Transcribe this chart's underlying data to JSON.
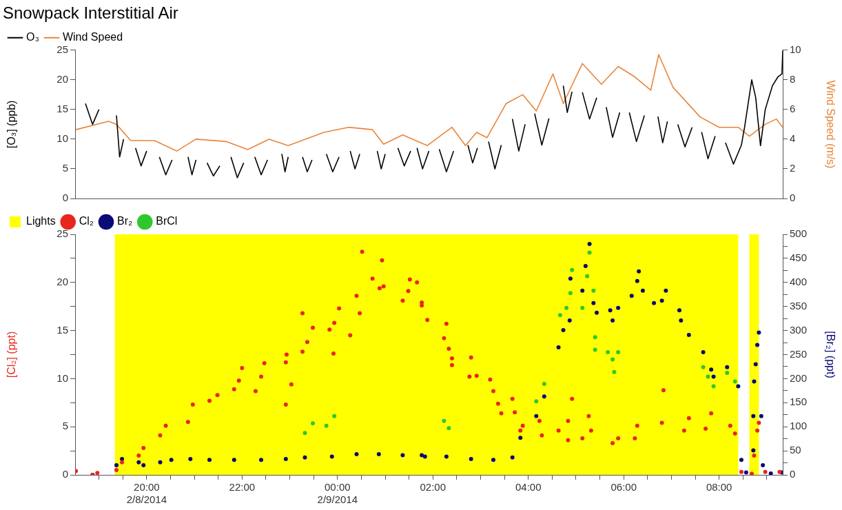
{
  "chart_data": [
    {
      "type": "line",
      "title": "Snowpack Interstitial Air",
      "ylabel": "[O₃] (ppb)",
      "y2label": "Wind Speed (m/s)",
      "legend": "top left",
      "tick_labels": "y",
      "marker": "none",
      "line_style": "solid",
      "xlim": [
        "2014-02-08T18:30",
        "2014-02-09T09:20"
      ],
      "ylim": [
        0,
        25
      ],
      "yticks": [
        0,
        5,
        10,
        15,
        20,
        25
      ],
      "y2lim": [
        0,
        10
      ],
      "y2ticks": [
        0,
        2,
        4,
        6,
        8,
        10
      ],
      "series": [
        {
          "name": "O₃",
          "color": "#000000",
          "x": [
            "2014-02-08T18:43",
            "2014-02-08T18:52",
            "2014-02-08T19:00",
            "2014-02-08T19:03",
            "2014-02-08T19:22",
            "2014-02-08T19:26",
            "2014-02-08T19:31",
            "2014-02-08T19:34",
            "2014-02-08T19:46",
            "2014-02-08T19:53",
            "2014-02-08T20:00",
            "2014-02-08T20:03",
            "2014-02-08T20:16",
            "2014-02-08T20:24",
            "2014-02-08T20:32",
            "2014-02-08T20:35",
            "2014-02-08T20:52",
            "2014-02-08T20:57",
            "2014-02-08T21:02",
            "2014-02-08T21:05",
            "2014-02-08T21:16",
            "2014-02-08T21:24",
            "2014-02-08T21:32",
            "2014-02-08T21:35",
            "2014-02-08T21:46",
            "2014-02-08T21:54",
            "2014-02-08T22:02",
            "2014-02-08T22:05",
            "2014-02-08T22:16",
            "2014-02-08T22:24",
            "2014-02-08T22:32",
            "2014-02-08T22:35",
            "2014-02-08T22:50",
            "2014-02-08T22:54",
            "2014-02-08T22:58",
            "2014-02-08T23:01",
            "2014-02-08T23:16",
            "2014-02-08T23:22",
            "2014-02-08T23:28",
            "2014-02-08T23:31",
            "2014-02-08T23:46",
            "2014-02-08T23:54",
            "2014-02-09T00:02",
            "2014-02-09T00:05",
            "2014-02-09T00:16",
            "2014-02-09T00:22",
            "2014-02-09T00:28",
            "2014-02-09T00:31",
            "2014-02-09T00:50",
            "2014-02-09T00:55",
            "2014-02-09T01:00",
            "2014-02-09T01:03",
            "2014-02-09T01:16",
            "2014-02-09T01:24",
            "2014-02-09T01:32",
            "2014-02-09T01:35",
            "2014-02-09T01:40",
            "2014-02-09T01:47",
            "2014-02-09T01:55",
            "2014-02-09T01:58",
            "2014-02-09T02:08",
            "2014-02-09T02:17",
            "2014-02-09T02:26",
            "2014-02-09T02:29",
            "2014-02-09T02:44",
            "2014-02-09T02:50",
            "2014-02-09T02:56",
            "2014-02-09T02:59",
            "2014-02-09T03:10",
            "2014-02-09T03:18",
            "2014-02-09T03:26",
            "2014-02-09T03:29",
            "2014-02-09T03:40",
            "2014-02-09T03:48",
            "2014-02-09T03:56",
            "2014-02-09T03:59",
            "2014-02-09T04:08",
            "2014-02-09T04:17",
            "2014-02-09T04:26",
            "2014-02-09T04:29",
            "2014-02-09T04:44",
            "2014-02-09T04:49",
            "2014-02-09T04:55",
            "2014-02-09T04:58",
            "2014-02-09T05:08",
            "2014-02-09T05:17",
            "2014-02-09T05:26",
            "2014-02-09T05:29",
            "2014-02-09T05:38",
            "2014-02-09T05:46",
            "2014-02-09T05:55",
            "2014-02-09T05:58",
            "2014-02-09T06:07",
            "2014-02-09T06:16",
            "2014-02-09T06:26",
            "2014-02-09T06:29",
            "2014-02-09T06:43",
            "2014-02-09T06:49",
            "2014-02-09T06:55",
            "2014-02-09T06:58",
            "2014-02-09T07:08",
            "2014-02-09T07:17",
            "2014-02-09T07:26",
            "2014-02-09T07:29",
            "2014-02-09T07:38",
            "2014-02-09T07:46",
            "2014-02-09T07:55",
            "2014-02-09T07:58",
            "2014-02-09T08:08",
            "2014-02-09T08:18",
            "2014-02-09T08:28",
            "2014-02-09T08:32",
            "2014-02-09T08:41",
            "2014-02-09T08:46",
            "2014-02-09T08:52",
            "2014-02-09T08:58",
            "2014-02-09T09:07",
            "2014-02-09T09:14",
            "2014-02-09T09:19",
            "2014-02-09T09:20"
          ],
          "values": [
            16,
            12.5,
            15,
            null,
            14,
            7,
            10,
            null,
            8.5,
            5.5,
            8,
            null,
            7,
            4,
            6.5,
            null,
            7,
            4,
            6.5,
            null,
            6,
            3.8,
            5.5,
            null,
            7,
            3.5,
            6,
            null,
            7,
            4,
            6.5,
            null,
            7.5,
            4.5,
            7,
            null,
            7,
            4.5,
            6.5,
            null,
            7.5,
            4.5,
            7,
            null,
            8,
            5,
            7.5,
            null,
            8,
            5,
            7.5,
            null,
            8.5,
            5.5,
            8,
            null,
            8.5,
            5,
            8,
            null,
            8.3,
            4.5,
            8,
            null,
            9,
            6,
            8.5,
            null,
            9.6,
            5,
            9,
            null,
            13.4,
            8,
            12.5,
            null,
            14.3,
            9,
            13.5,
            null,
            19,
            14.5,
            18,
            null,
            17.9,
            13.4,
            17,
            null,
            15.4,
            10.3,
            14.5,
            null,
            14.5,
            9.6,
            14,
            null,
            13.8,
            9.4,
            13,
            null,
            12.5,
            8.7,
            12,
            null,
            11.2,
            6.7,
            10.5,
            null,
            9.4,
            5.8,
            9,
            12,
            20,
            17,
            8.9,
            15,
            19,
            20.5,
            21,
            25
          ]
        },
        {
          "name": "Wind Speed",
          "axis": "y2",
          "color": "#e8853a",
          "x": [
            "2014-02-08T18:31",
            "2014-02-08T19:12",
            "2014-02-08T19:22",
            "2014-02-08T19:40",
            "2014-02-08T20:10",
            "2014-02-08T20:38",
            "2014-02-08T21:02",
            "2014-02-08T21:40",
            "2014-02-08T22:07",
            "2014-02-08T22:34",
            "2014-02-08T22:58",
            "2014-02-08T23:43",
            "2014-02-09T00:14",
            "2014-02-09T00:44",
            "2014-02-09T00:58",
            "2014-02-09T01:22",
            "2014-02-09T01:53",
            "2014-02-09T02:24",
            "2014-02-09T02:41",
            "2014-02-09T02:55",
            "2014-02-09T03:08",
            "2014-02-09T03:32",
            "2014-02-09T03:53",
            "2014-02-09T04:10",
            "2014-02-09T04:31",
            "2014-02-09T04:44",
            "2014-02-09T05:08",
            "2014-02-09T05:32",
            "2014-02-09T05:53",
            "2014-02-09T06:14",
            "2014-02-09T06:34",
            "2014-02-09T06:44",
            "2014-02-09T07:02",
            "2014-02-09T07:36",
            "2014-02-09T08:00",
            "2014-02-09T08:24",
            "2014-02-09T08:38",
            "2014-02-09T08:58",
            "2014-02-09T09:12",
            "2014-02-09T09:20"
          ],
          "values": [
            4.64,
            5.2,
            5.0,
            3.9,
            3.9,
            3.2,
            4.0,
            3.84,
            3.3,
            4.0,
            3.57,
            4.46,
            4.8,
            4.64,
            3.66,
            4.29,
            3.57,
            4.8,
            3.57,
            4.46,
            4.1,
            6.4,
            7.0,
            5.9,
            8.4,
            6.4,
            9.1,
            7.7,
            8.9,
            8.2,
            7.3,
            9.7,
            7.5,
            5.5,
            4.8,
            4.8,
            4.2,
            5.0,
            5.36,
            4.8
          ]
        }
      ]
    },
    {
      "type": "scatter",
      "ylabel": "[Cl₂] (ppt)",
      "y2label": "[Br₂] (ppt)",
      "legend": "top left",
      "marker": "circle",
      "xlim": [
        "2014-02-08T18:30",
        "2014-02-09T09:20"
      ],
      "xticks": [
        {
          "value": "2014-02-08T19:00",
          "label": null
        },
        {
          "value": "2014-02-08T19:30",
          "label": null
        },
        {
          "value": "2014-02-08T20:00",
          "label": "20:00\n2/8/2014"
        },
        {
          "value": "2014-02-08T20:30",
          "label": null
        },
        {
          "value": "2014-02-08T21:00",
          "label": null
        },
        {
          "value": "2014-02-08T21:30",
          "label": null
        },
        {
          "value": "2014-02-08T22:00",
          "label": "22:00"
        },
        {
          "value": "2014-02-08T22:30",
          "label": null
        },
        {
          "value": "2014-02-08T23:00",
          "label": null
        },
        {
          "value": "2014-02-08T23:30",
          "label": null
        },
        {
          "value": "2014-02-09T00:00",
          "label": "00:00\n2/9/2014"
        },
        {
          "value": "2014-02-09T00:30",
          "label": null
        },
        {
          "value": "2014-02-09T01:00",
          "label": null
        },
        {
          "value": "2014-02-09T01:30",
          "label": null
        },
        {
          "value": "2014-02-09T02:00",
          "label": "02:00"
        },
        {
          "value": "2014-02-09T02:30",
          "label": null
        },
        {
          "value": "2014-02-09T03:00",
          "label": null
        },
        {
          "value": "2014-02-09T03:30",
          "label": null
        },
        {
          "value": "2014-02-09T04:00",
          "label": "04:00"
        },
        {
          "value": "2014-02-09T04:30",
          "label": null
        },
        {
          "value": "2014-02-09T05:00",
          "label": null
        },
        {
          "value": "2014-02-09T05:30",
          "label": null
        },
        {
          "value": "2014-02-09T06:00",
          "label": "06:00"
        },
        {
          "value": "2014-02-09T06:30",
          "label": null
        },
        {
          "value": "2014-02-09T07:00",
          "label": null
        },
        {
          "value": "2014-02-09T07:30",
          "label": null
        },
        {
          "value": "2014-02-09T08:00",
          "label": "08:00"
        },
        {
          "value": "2014-02-09T08:30",
          "label": null
        },
        {
          "value": "2014-02-09T09:00",
          "label": null
        }
      ],
      "ylim": [
        0,
        25
      ],
      "yticks": [
        0,
        {
          "value": 2.5,
          "label": null
        },
        5,
        {
          "value": 7.5,
          "label": null
        },
        10,
        {
          "value": 12.5,
          "label": null
        },
        15,
        {
          "value": 17.5,
          "label": null
        },
        20,
        {
          "value": 22.5,
          "label": null
        },
        25
      ],
      "y2lim": [
        0,
        500
      ],
      "y2ticks": [
        0,
        {
          "value": 25,
          "label": null
        },
        50,
        {
          "value": 75,
          "label": null
        },
        100,
        {
          "value": 125,
          "label": null
        },
        150,
        {
          "value": 175,
          "label": null
        },
        200,
        {
          "value": 225,
          "label": null
        },
        250,
        {
          "value": 275,
          "label": null
        },
        300,
        {
          "value": 325,
          "label": null
        },
        350,
        {
          "value": 375,
          "label": null
        },
        400,
        {
          "value": 425,
          "label": null
        },
        450,
        {
          "value": 475,
          "label": null
        },
        500
      ],
      "bands": [
        {
          "axis": "x",
          "from": "2014-02-08T19:20",
          "to": "2014-02-09T08:24",
          "label": "Lights",
          "color": "#ffff00"
        },
        {
          "axis": "x",
          "from": "2014-02-09T08:38",
          "to": "2014-02-09T08:50",
          "color": "#ffff00"
        }
      ],
      "series": [
        {
          "name": "Cl₂",
          "color": "#e8261e",
          "x": [
            "2014-02-08T18:31",
            "2014-02-08T18:52",
            "2014-02-08T18:58",
            "2014-02-08T19:22",
            "2014-02-08T19:29",
            "2014-02-08T19:50",
            "2014-02-08T19:56",
            "2014-02-08T20:17",
            "2014-02-08T20:24",
            "2014-02-08T20:52",
            "2014-02-08T20:58",
            "2014-02-08T21:19",
            "2014-02-08T21:29",
            "2014-02-08T21:50",
            "2014-02-08T21:56",
            "2014-02-08T22:00",
            "2014-02-08T22:17",
            "2014-02-08T22:24",
            "2014-02-08T22:28",
            "2014-02-08T22:55",
            "2014-02-08T22:56",
            "2014-02-08T22:55",
            "2014-02-08T23:02",
            "2014-02-08T23:16",
            "2014-02-08T23:22",
            "2014-02-08T23:29",
            "2014-02-08T23:16",
            "2014-02-08T23:50",
            "2014-02-08T23:56",
            "2014-02-08T23:55",
            "2014-02-09T00:02",
            "2014-02-09T00:16",
            "2014-02-09T00:24",
            "2014-02-09T00:28",
            "2014-02-09T00:31",
            "2014-02-09T00:44",
            "2014-02-09T00:53",
            "2014-02-09T00:56",
            "2014-02-09T00:58",
            "2014-02-09T01:22",
            "2014-02-09T01:29",
            "2014-02-09T01:31",
            "2014-02-09T01:46",
            "2014-02-09T01:40",
            "2014-02-09T01:46",
            "2014-02-09T01:53",
            "2014-02-09T02:17",
            "2014-02-09T02:14",
            "2014-02-09T02:20",
            "2014-02-09T02:24",
            "2014-02-09T02:24",
            "2014-02-09T02:48",
            "2014-02-09T02:46",
            "2014-02-09T02:55",
            "2014-02-09T03:12",
            "2014-02-09T03:16",
            "2014-02-09T03:22",
            "2014-02-09T03:26",
            "2014-02-09T03:40",
            "2014-02-09T03:43",
            "2014-02-09T03:50",
            "2014-02-09T03:53",
            "2014-02-09T04:14",
            "2014-02-09T04:17",
            "2014-02-09T04:38",
            "2014-02-09T04:50",
            "2014-02-09T04:55",
            "2014-02-09T04:50",
            "2014-02-09T05:16",
            "2014-02-09T05:19",
            "2014-02-09T05:08",
            "2014-02-09T05:46",
            "2014-02-09T05:53",
            "2014-02-09T06:17",
            "2014-02-09T06:14",
            "2014-02-09T06:48",
            "2014-02-09T06:50",
            "2014-02-09T07:16",
            "2014-02-09T07:22",
            "2014-02-09T07:43",
            "2014-02-09T07:50",
            "2014-02-09T08:14",
            "2014-02-09T08:20",
            "2014-02-09T08:28",
            "2014-02-09T08:41",
            "2014-02-09T08:48",
            "2014-02-09T08:50",
            "2014-02-09T08:44",
            "2014-02-09T08:58",
            "2014-02-09T09:16"
          ],
          "values": [
            0.4,
            0,
            0.2,
            0.5,
            1.3,
            2.0,
            2.8,
            4.1,
            5.1,
            5.5,
            7.3,
            7.7,
            8.3,
            8.9,
            9.8,
            11.1,
            8.7,
            10.2,
            11.6,
            11.7,
            12.5,
            7.3,
            9.4,
            12.8,
            13.8,
            15.3,
            16.8,
            15.1,
            15.8,
            12.6,
            17.3,
            14.5,
            18.6,
            16.8,
            23.2,
            20.4,
            19.4,
            22.3,
            19.6,
            18.1,
            19.1,
            20.3,
            17.9,
            20.0,
            17.6,
            16.1,
            15.7,
            14.2,
            13.1,
            12.1,
            11.4,
            12.2,
            10.2,
            10.3,
            9.9,
            8.7,
            7.4,
            6.4,
            7.9,
            6.5,
            4.6,
            5.1,
            5.6,
            4.1,
            4.6,
            5.6,
            7.9,
            3.6,
            6.1,
            4.6,
            3.8,
            3.3,
            3.8,
            5.1,
            3.8,
            5.4,
            8.8,
            4.6,
            5.9,
            4.8,
            6.4,
            5.1,
            4.3,
            0.3,
            0.1,
            4.6,
            5.4,
            2.0,
            0.3,
            0.3
          ]
        },
        {
          "name": "Br₂",
          "axis": "y2",
          "color": "#0a0a78",
          "x": [
            "2014-02-08T18:52",
            "2014-02-08T19:22",
            "2014-02-08T19:29",
            "2014-02-08T19:50",
            "2014-02-08T19:56",
            "2014-02-08T20:17",
            "2014-02-08T20:31",
            "2014-02-08T20:55",
            "2014-02-08T21:19",
            "2014-02-08T21:50",
            "2014-02-08T22:24",
            "2014-02-08T22:55",
            "2014-02-08T23:19",
            "2014-02-08T23:53",
            "2014-02-09T00:24",
            "2014-02-09T00:52",
            "2014-02-09T01:22",
            "2014-02-09T01:50",
            "2014-02-09T01:46",
            "2014-02-09T02:17",
            "2014-02-09T02:48",
            "2014-02-09T03:16",
            "2014-02-09T03:40",
            "2014-02-09T03:50",
            "2014-02-09T04:10",
            "2014-02-09T04:20",
            "2014-02-09T04:38",
            "2014-02-09T04:44",
            "2014-02-09T04:52",
            "2014-02-09T04:53",
            "2014-02-09T05:08",
            "2014-02-09T05:12",
            "2014-02-09T05:17",
            "2014-02-09T05:22",
            "2014-02-09T05:26",
            "2014-02-09T05:43",
            "2014-02-09T05:53",
            "2014-02-09T05:46",
            "2014-02-09T06:10",
            "2014-02-09T06:17",
            "2014-02-09T06:19",
            "2014-02-09T06:24",
            "2014-02-09T06:38",
            "2014-02-09T06:48",
            "2014-02-09T06:53",
            "2014-02-09T07:10",
            "2014-02-09T07:12",
            "2014-02-09T07:22",
            "2014-02-09T07:40",
            "2014-02-09T07:50",
            "2014-02-09T07:53",
            "2014-02-09T08:10",
            "2014-02-09T08:24",
            "2014-02-09T08:28",
            "2014-02-09T08:34",
            "2014-02-09T08:43",
            "2014-02-09T08:43",
            "2014-02-09T08:44",
            "2014-02-09T08:46",
            "2014-02-09T08:48",
            "2014-02-09T08:50",
            "2014-02-09T08:53",
            "2014-02-09T08:55",
            "2014-02-09T09:05",
            "2014-02-09T09:19"
          ],
          "values": [
            0,
            20,
            33,
            26,
            20,
            26,
            31,
            33,
            31,
            31,
            31,
            33,
            36,
            38,
            43,
            43,
            41,
            38,
            41,
            38,
            33,
            31,
            36,
            77,
            122,
            163,
            265,
            301,
            321,
            408,
            383,
            434,
            480,
            357,
            337,
            342,
            347,
            321,
            372,
            403,
            423,
            383,
            357,
            362,
            383,
            342,
            321,
            291,
            255,
            219,
            204,
            224,
            184,
            31,
            5,
            51,
            122,
            194,
            230,
            270,
            296,
            122,
            20,
            3,
            5
          ]
        },
        {
          "name": "BrCl",
          "axis": "y2",
          "color": "#2ec82e",
          "x": [
            "2014-02-08T23:19",
            "2014-02-08T23:29",
            "2014-02-08T23:46",
            "2014-02-08T23:56",
            "2014-02-09T02:14",
            "2014-02-09T02:20",
            "2014-02-09T04:10",
            "2014-02-09T04:20",
            "2014-02-09T04:40",
            "2014-02-09T04:48",
            "2014-02-09T04:53",
            "2014-02-09T04:55",
            "2014-02-09T05:08",
            "2014-02-09T05:14",
            "2014-02-09T05:17",
            "2014-02-09T05:22",
            "2014-02-09T05:24",
            "2014-02-09T05:24",
            "2014-02-09T05:40",
            "2014-02-09T05:46",
            "2014-02-09T05:48",
            "2014-02-09T05:53",
            "2014-02-09T07:40",
            "2014-02-09T07:46",
            "2014-02-09T07:53",
            "2014-02-09T08:10",
            "2014-02-09T08:20"
          ],
          "values": [
            87,
            107,
            102,
            122,
            112,
            97,
            153,
            189,
            332,
            347,
            378,
            426,
            347,
            413,
            462,
            383,
            286,
            260,
            255,
            240,
            214,
            255,
            224,
            204,
            184,
            212,
            194
          ]
        }
      ]
    }
  ]
}
